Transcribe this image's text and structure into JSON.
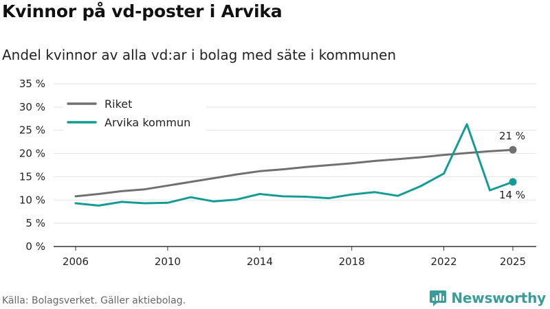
{
  "title": "Kvinnor på vd-poster i Arvika",
  "subtitle": "Andel kvinnor av alla vd:ar i bolag med säte i kommunen",
  "source": "Källa: Bolagsverket. Gäller aktiebolag.",
  "brand": "Newsworthy",
  "brand_icon": "newsworthy-logo-icon",
  "colors": {
    "riket": "#707070",
    "arvika": "#139c94",
    "grid": "#e2e2e2",
    "axis": "#333333",
    "brand": "#3a9d9a"
  },
  "chart_data": {
    "type": "line",
    "title": "Kvinnor på vd-poster i Arvika",
    "subtitle": "Andel kvinnor av alla vd:ar i bolag med säte i kommunen",
    "xlabel": "",
    "ylabel": "",
    "x": [
      2006,
      2007,
      2008,
      2009,
      2010,
      2011,
      2012,
      2013,
      2014,
      2015,
      2016,
      2017,
      2018,
      2019,
      2020,
      2021,
      2022,
      2023,
      2024,
      2025
    ],
    "x_ticks": [
      2006,
      2010,
      2014,
      2018,
      2022,
      2025
    ],
    "x_tick_labels": [
      "2006",
      "2010",
      "2014",
      "2018",
      "2022",
      "2025"
    ],
    "xlim": [
      2006,
      2025
    ],
    "ylim": [
      0,
      35
    ],
    "y_ticks": [
      0,
      5,
      10,
      15,
      20,
      25,
      30,
      35
    ],
    "y_tick_labels": [
      "0 %",
      "5 %",
      "10 %",
      "15 %",
      "20 %",
      "25 %",
      "30 %",
      "35 %"
    ],
    "grid": true,
    "legend_position": "top-left",
    "series": [
      {
        "name": "Riket",
        "color": "#707070",
        "values": [
          10.8,
          11.3,
          11.9,
          12.3,
          13.1,
          13.9,
          14.7,
          15.5,
          16.2,
          16.6,
          17.1,
          17.5,
          17.9,
          18.4,
          18.8,
          19.2,
          19.7,
          20.1,
          20.5,
          20.8
        ],
        "end_label": "21 %",
        "end_label_position": "above"
      },
      {
        "name": "Arvika kommun",
        "color": "#139c94",
        "values": [
          9.3,
          8.8,
          9.6,
          9.3,
          9.4,
          10.6,
          9.7,
          10.1,
          11.3,
          10.8,
          10.7,
          10.4,
          11.2,
          11.7,
          10.9,
          13.0,
          15.7,
          26.3,
          12.1,
          13.9
        ],
        "end_label": "14 %",
        "end_label_position": "below"
      }
    ]
  }
}
